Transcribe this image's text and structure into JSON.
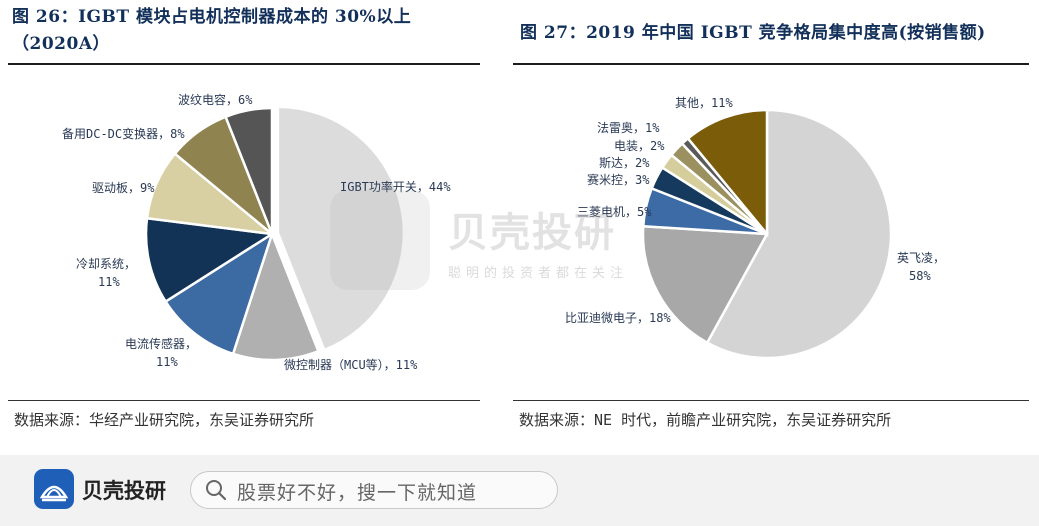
{
  "chart_data": [
    {
      "type": "pie",
      "title": "图 26：IGBT 模块占电机控制器成本的 30%以上（2020A）",
      "title_lines": [
        "图 26：IGBT 模块占电机控制器成本的 30%以上",
        "（2020A）"
      ],
      "slices": [
        {
          "label": "IGBT功率开关",
          "value": 44,
          "text": "IGBT功率开关，44%",
          "color": "#dcdcdc",
          "explode": true
        },
        {
          "label": "微控制器（MCU等）",
          "value": 11,
          "text": "微控制器（MCU等），11%",
          "color": "#b0b0b0"
        },
        {
          "label": "电流传感器",
          "value": 11,
          "text": "电流传感器，",
          "text2": "11%",
          "color": "#3c6aa3"
        },
        {
          "label": "冷却系统",
          "value": 11,
          "text": "冷却系统，",
          "text2": "11%",
          "color": "#123356"
        },
        {
          "label": "驱动板",
          "value": 9,
          "text": "驱动板，9%",
          "color": "#d8cfa3"
        },
        {
          "label": "备用DC-DC变换器",
          "value": 8,
          "text": "备用DC-DC变换器，8%",
          "color": "#8f8350"
        },
        {
          "label": "波纹电容",
          "value": 6,
          "text": "波纹电容，6%",
          "color": "#555555"
        }
      ],
      "source": "数据来源：华经产业研究院，东吴证券研究所"
    },
    {
      "type": "pie",
      "title": "图 27：2019 年中国 IGBT 竞争格局集中度高(按销售额)",
      "title_lines": [
        "图 27：2019 年中国 IGBT 竞争格局集中度高(按销售额)"
      ],
      "slices": [
        {
          "label": "英飞凌",
          "value": 58,
          "text": "英飞凌，",
          "text2": "58%",
          "color": "#d4d4d4"
        },
        {
          "label": "比亚迪微电子",
          "value": 18,
          "text": "比亚迪微电子，18%",
          "color": "#a8a8a8"
        },
        {
          "label": "三菱电机",
          "value": 5,
          "text": "三菱电机，5%",
          "color": "#3d6ba6"
        },
        {
          "label": "赛米控",
          "value": 3,
          "text": "赛米控，3%",
          "color": "#163a5e"
        },
        {
          "label": "斯达",
          "value": 2,
          "text": "斯达，2%",
          "color": "#d6cd9c"
        },
        {
          "label": "电装",
          "value": 2,
          "text": "电装，2%",
          "color": "#9a9060"
        },
        {
          "label": "法雷奥",
          "value": 1,
          "text": "法雷奥，1%",
          "color": "#5a5a5a"
        },
        {
          "label": "其他",
          "value": 11,
          "text": "其他，11%",
          "color": "#7b5c08"
        }
      ],
      "source": "数据来源：NE 时代，前瞻产业研究院，东吴证券研究所"
    }
  ],
  "watermark": {
    "brand": "贝壳投研",
    "tagline": "聪明的投资者都在关注"
  },
  "footer": {
    "brand": "贝壳投研",
    "search_placeholder": "股票好不好，搜一下就知道"
  }
}
